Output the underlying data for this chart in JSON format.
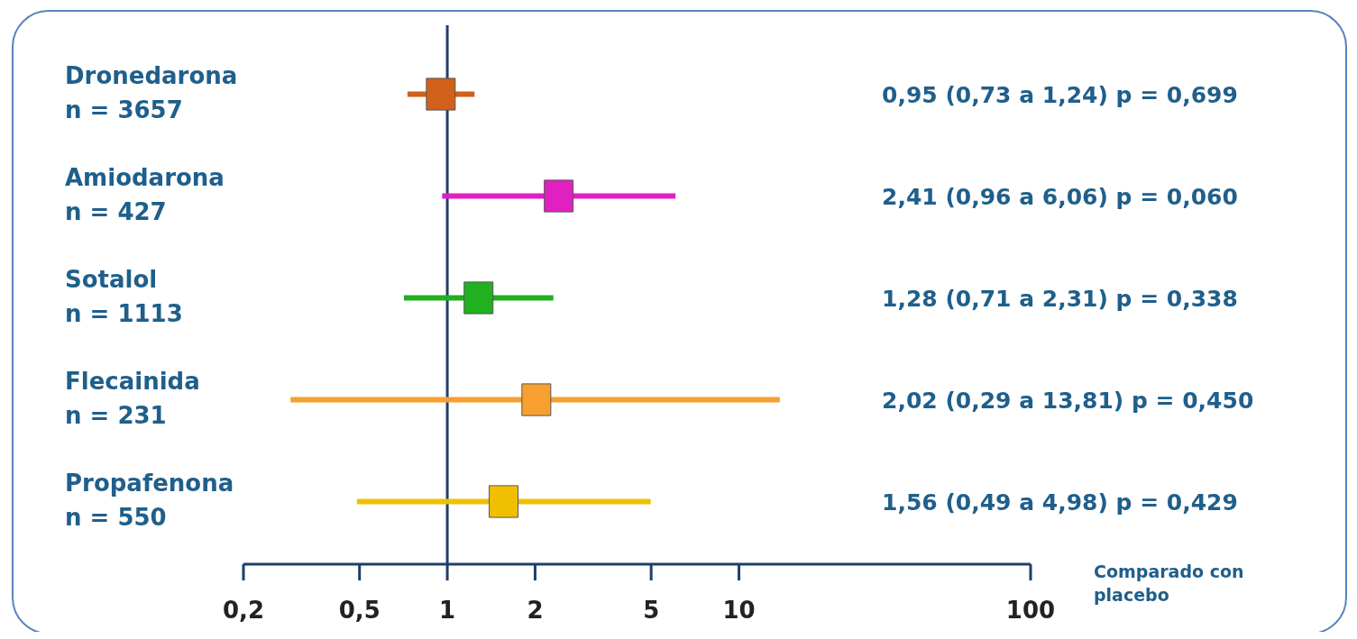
{
  "chart_data": {
    "type": "scatter",
    "orientation": "horizontal",
    "marker": "square",
    "log": "x",
    "categories": [
      "Dronedarona\nn = 3657",
      "Amiodarona\nn = 427",
      "Sotalol\nn = 1113",
      "Flecainida\nn = 231",
      "Propafenona\nn = 550"
    ],
    "values": [
      0.95,
      2.41,
      1.28,
      2.02,
      1.56
    ],
    "errors": [
      [
        0.73,
        1.24
      ],
      [
        0.96,
        6.06
      ],
      [
        0.71,
        2.31
      ],
      [
        0.29,
        13.81
      ],
      [
        0.49,
        4.98
      ]
    ],
    "colors": [
      "#d0601a",
      "#e020c0",
      "#20b020",
      "#f7a030",
      "#f0c000"
    ],
    "annotations": [
      "0,95 (0,73 a 1,24) p = 0,699",
      "2,41 (0,96 a 6,06) p = 0,060",
      "1,28 (0,71 a 2,31) p = 0,338",
      "2,02 (0,29 a 13,81) p = 0,450",
      "1,56 (0,49 a 4,98) p = 0,429"
    ],
    "xlim": [
      0.2,
      100
    ],
    "xticks": [
      {
        "value": 0.2,
        "label": "0,2"
      },
      {
        "value": 0.5,
        "label": "0,5"
      },
      1,
      2,
      5,
      10,
      100
    ],
    "xlabel": "Comparado con\nplacebo",
    "ref_lines": [
      {
        "axis": "x",
        "value": 1,
        "label": null,
        "color": "#1f3f6b"
      }
    ]
  }
}
